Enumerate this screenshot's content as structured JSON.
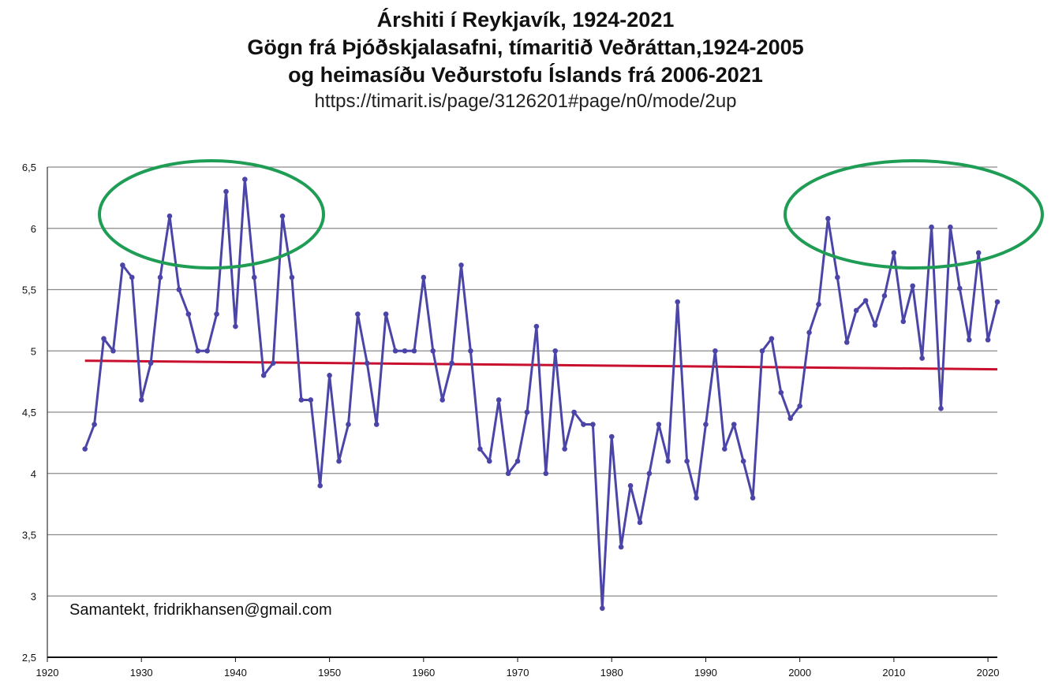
{
  "titles": {
    "line1": "Árshiti í Reykjavík, 1924-2021",
    "line2": "Gögn frá Þjóðskjalasafni, tímaritið Veðráttan,1924-2005",
    "line3": "og heimasíðu Veðurstofu Íslands frá 2006-2021",
    "url": "https://timarit.is/page/3126201#page/n0/mode/2up"
  },
  "annotation": "Samantekt, fridrikhansen@gmail.com",
  "colors": {
    "series": "#4B45A8",
    "trend": "#C8102E",
    "ellipse": "#1F9D55",
    "grid": "#8A8A8A"
  },
  "chart_data": {
    "type": "line",
    "xlim": [
      1920,
      2021
    ],
    "ylim": [
      2.5,
      6.5
    ],
    "x_ticks": [
      "1920",
      "1930",
      "1940",
      "1950",
      "1960",
      "1970",
      "1980",
      "1990",
      "2000",
      "2010",
      "2020"
    ],
    "y_ticks": [
      "2,5",
      "3",
      "3,5",
      "4",
      "4,5",
      "5",
      "5,5",
      "6",
      "6,5"
    ],
    "grid": "horizontal",
    "series": [
      {
        "x": [
          1924,
          1925,
          1926,
          1927,
          1928,
          1929,
          1930,
          1931,
          1932,
          1933,
          1934,
          1935,
          1936,
          1937,
          1938,
          1939,
          1940,
          1941,
          1942,
          1943,
          1944,
          1945,
          1946,
          1947,
          1948,
          1949,
          1950,
          1951,
          1952,
          1953,
          1954,
          1955,
          1956,
          1957,
          1958,
          1959,
          1960,
          1961,
          1962,
          1963,
          1964,
          1965,
          1966,
          1967,
          1968,
          1969,
          1970,
          1971,
          1972,
          1973,
          1974,
          1975,
          1976,
          1977,
          1978,
          1979,
          1980,
          1981,
          1982,
          1983,
          1984,
          1985,
          1986,
          1987,
          1988,
          1989,
          1990,
          1991,
          1992,
          1993,
          1994,
          1995,
          1996,
          1997,
          1998,
          1999,
          2000,
          2001,
          2002,
          2003,
          2004,
          2005,
          2006,
          2007,
          2008,
          2009,
          2010,
          2011,
          2012,
          2013,
          2014,
          2015,
          2016,
          2017,
          2018,
          2019,
          2020,
          2021
        ],
        "y": [
          4.2,
          4.4,
          5.1,
          5.0,
          5.7,
          5.6,
          4.6,
          4.9,
          5.6,
          6.1,
          5.5,
          5.3,
          5.0,
          5.0,
          5.3,
          6.3,
          5.2,
          6.4,
          5.6,
          4.8,
          4.9,
          6.1,
          5.6,
          4.6,
          4.6,
          3.9,
          4.8,
          4.1,
          4.4,
          5.3,
          4.9,
          4.4,
          5.3,
          5.0,
          5.0,
          5.0,
          5.6,
          5.0,
          4.6,
          4.9,
          5.7,
          5.0,
          4.2,
          4.1,
          4.6,
          4.0,
          4.1,
          4.5,
          5.2,
          4.0,
          5.0,
          4.2,
          4.5,
          4.4,
          4.4,
          2.9,
          4.3,
          3.4,
          3.9,
          3.6,
          4.0,
          4.4,
          4.1,
          5.4,
          4.1,
          3.8,
          4.4,
          5.0,
          4.2,
          4.4,
          4.1,
          3.8,
          5.0,
          5.1,
          4.66,
          4.45,
          4.55,
          5.15,
          5.38,
          6.08,
          5.6,
          5.07,
          5.33,
          5.41,
          5.21,
          5.45,
          5.8,
          5.24,
          5.53,
          4.94,
          6.01,
          4.53,
          6.01,
          5.51,
          5.09,
          5.8,
          5.09,
          5.4
        ]
      },
      {
        "x": [
          1924,
          2021
        ],
        "y": [
          4.92,
          4.85
        ]
      }
    ]
  }
}
